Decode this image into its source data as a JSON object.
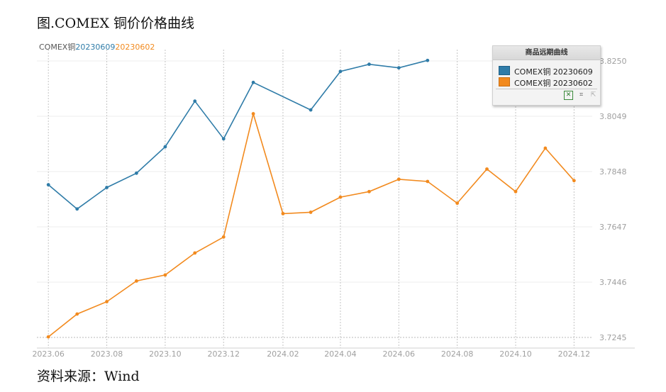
{
  "figure_title": "图.COMEX 铜价价格曲线",
  "source": "资料来源：Wind",
  "caption": {
    "prefix": "COMEX铜",
    "s1": "20230609",
    "s2": "20230602"
  },
  "legend": {
    "title": "商品远期曲线",
    "tools": [
      "excel-icon",
      "crop-icon",
      "resize-icon"
    ]
  },
  "colors": {
    "series1": "#2f7ca8",
    "series2": "#f28a1e",
    "axis_text": "#a0a0a0"
  },
  "chart_data": {
    "type": "line",
    "x_ticks": [
      "2023.06",
      "2023.08",
      "2023.10",
      "2023.12",
      "2024.02",
      "2024.04",
      "2024.06",
      "2024.08",
      "2024.10",
      "2024.12"
    ],
    "y_ticks": [
      "3.7245",
      "3.7446",
      "3.7647",
      "3.7848",
      "3.8049",
      "3.8250"
    ],
    "ylim": [
      3.7245,
      3.825
    ],
    "xlim": [
      "2023-05-20",
      "2024-12-20"
    ],
    "grid": true,
    "legend_position": "top-right",
    "series": [
      {
        "name": "COMEX铜 20230609",
        "x": [
          "2023-06",
          "2023-07",
          "2023-08",
          "2023-09",
          "2023-10",
          "2023-11",
          "2023-12",
          "2024-01",
          "2024-03",
          "2024-04",
          "2024-05",
          "2024-06",
          "2024-07"
        ],
        "values": [
          3.78,
          3.7712,
          3.779,
          3.7842,
          3.7938,
          3.8104,
          3.7967,
          3.8172,
          3.8072,
          3.8212,
          3.8238,
          3.8225,
          3.8252
        ]
      },
      {
        "name": "COMEX铜 20230602",
        "x": [
          "2023-06",
          "2023-07",
          "2023-08",
          "2023-09",
          "2023-10",
          "2023-11",
          "2023-12",
          "2024-01",
          "2024-02",
          "2024-03",
          "2024-04",
          "2024-05",
          "2024-06",
          "2024-07",
          "2024-08",
          "2024-09",
          "2024-10",
          "2024-11",
          "2024-12"
        ],
        "values": [
          3.7247,
          3.733,
          3.7375,
          3.745,
          3.7472,
          3.7552,
          3.761,
          3.8058,
          3.7695,
          3.77,
          3.7755,
          3.7775,
          3.782,
          3.7812,
          3.7733,
          3.7857,
          3.7775,
          3.7933,
          3.7815
        ]
      }
    ]
  }
}
